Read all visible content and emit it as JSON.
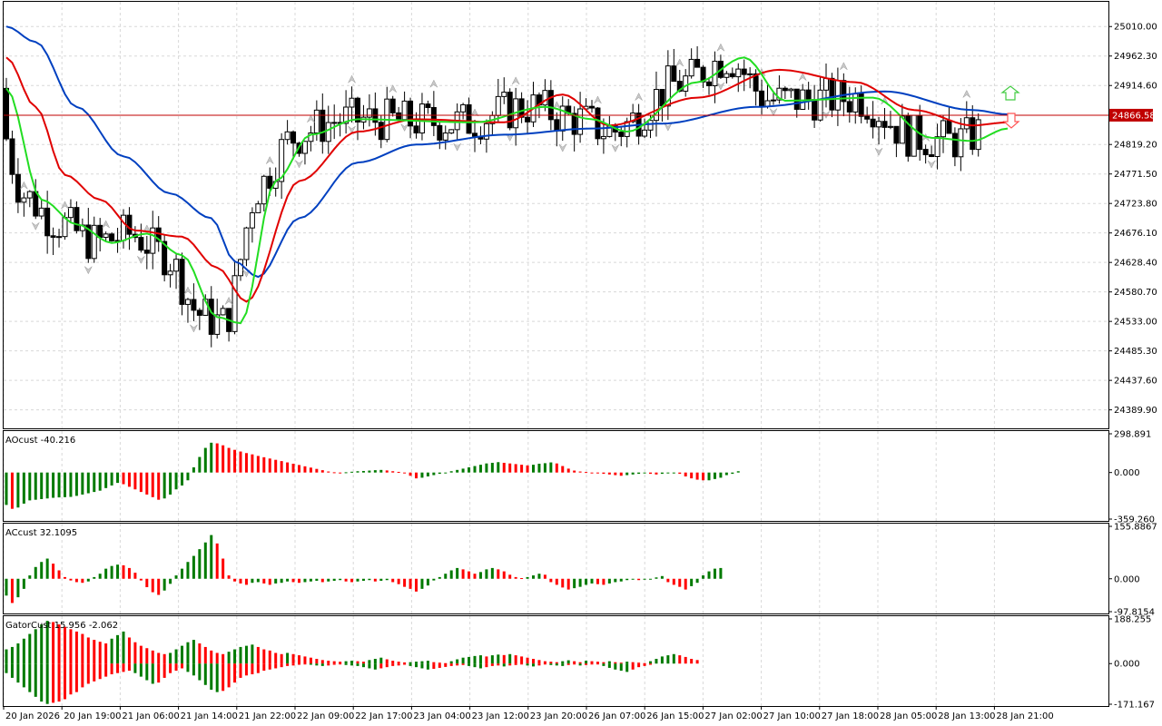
{
  "chart_data": [
    {
      "type": "candlestick",
      "panel": "main",
      "price_ticks": [
        "25010.00",
        "24962.30",
        "24914.60",
        "24866.58",
        "24819.20",
        "24771.50",
        "24723.80",
        "24676.10",
        "24628.40",
        "24580.70",
        "24533.00",
        "24485.30",
        "24437.60",
        "24389.90"
      ],
      "price_range": [
        24360,
        25050
      ],
      "current_price_label": "24866.58",
      "current_price": 24866.58,
      "candle_count": 171,
      "series": [
        {
          "name": "",
          "color": "#0040c0",
          "anchors": [
            [
              0,
              25010
            ],
            [
              5,
              24985
            ],
            [
              12,
              24880
            ],
            [
              20,
              24800
            ],
            [
              28,
              24740
            ],
            [
              35,
              24700
            ],
            [
              39,
              24630
            ],
            [
              43,
              24605
            ],
            [
              50,
              24700
            ],
            [
              60,
              24790
            ],
            [
              70,
              24819
            ],
            [
              85,
              24835
            ],
            [
              100,
              24845
            ],
            [
              112,
              24853
            ],
            [
              128,
              24880
            ],
            [
              150,
              24905
            ],
            [
              165,
              24875
            ],
            [
              171,
              24868
            ]
          ]
        },
        {
          "name": "",
          "color": "#e00000",
          "anchors": [
            [
              0,
              24960
            ],
            [
              5,
              24880
            ],
            [
              10,
              24770
            ],
            [
              16,
              24730
            ],
            [
              22,
              24680
            ],
            [
              30,
              24670
            ],
            [
              36,
              24620
            ],
            [
              41,
              24565
            ],
            [
              50,
              24760
            ],
            [
              60,
              24840
            ],
            [
              70,
              24860
            ],
            [
              85,
              24855
            ],
            [
              95,
              24900
            ],
            [
              103,
              24850
            ],
            [
              118,
              24895
            ],
            [
              132,
              24940
            ],
            [
              145,
              24920
            ],
            [
              155,
              24875
            ],
            [
              165,
              24850
            ],
            [
              171,
              24855
            ]
          ]
        },
        {
          "name": "",
          "color": "#22dd22",
          "anchors": [
            [
              0,
              24910
            ],
            [
              6,
              24730
            ],
            [
              12,
              24690
            ],
            [
              18,
              24660
            ],
            [
              24,
              24675
            ],
            [
              30,
              24640
            ],
            [
              36,
              24540
            ],
            [
              40,
              24530
            ],
            [
              46,
              24760
            ],
            [
              52,
              24835
            ],
            [
              60,
              24860
            ],
            [
              80,
              24855
            ],
            [
              92,
              24880
            ],
            [
              100,
              24860
            ],
            [
              106,
              24840
            ],
            [
              118,
              24920
            ],
            [
              126,
              24960
            ],
            [
              133,
              24890
            ],
            [
              148,
              24895
            ],
            [
              158,
              24830
            ],
            [
              165,
              24825
            ],
            [
              171,
              24845
            ]
          ]
        }
      ],
      "x_tick_labels": [
        "20 Jan 2026",
        "20 Jan 19:00",
        "21 Jan 06:00",
        "21 Jan 14:00",
        "21 Jan 22:00",
        "22 Jan 09:00",
        "22 Jan 17:00",
        "23 Jan 04:00",
        "23 Jan 12:00",
        "23 Jan 20:00",
        "26 Jan 07:00",
        "26 Jan 15:00",
        "27 Jan 02:00",
        "27 Jan 10:00",
        "27 Jan 18:00",
        "28 Jan 05:00",
        "28 Jan 13:00",
        "28 Jan 21:00"
      ]
    },
    {
      "type": "bar",
      "panel": "AO",
      "label": "AOcust -40.216",
      "ticks": [
        "298.891",
        "0.000",
        "-359.260"
      ],
      "range": [
        -359.26,
        298.891
      ],
      "up_color": "#007a00",
      "down_color": "#ff0000",
      "values": [
        -250,
        -280,
        -270,
        -240,
        -215,
        -210,
        -205,
        -200,
        -195,
        -192,
        -190,
        -188,
        -180,
        -170,
        -160,
        -150,
        -140,
        -120,
        -100,
        -80,
        -90,
        -110,
        -130,
        -150,
        -170,
        -190,
        -210,
        -200,
        -170,
        -130,
        -100,
        -60,
        40,
        120,
        190,
        230,
        225,
        210,
        190,
        175,
        162,
        150,
        140,
        128,
        118,
        108,
        98,
        88,
        78,
        68,
        58,
        48,
        38,
        28,
        18,
        8,
        2,
        -2,
        2,
        6,
        10,
        12,
        15,
        18,
        20,
        16,
        10,
        5,
        -5,
        -25,
        -45,
        -40,
        -30,
        -20,
        -10,
        0,
        10,
        20,
        30,
        40,
        50,
        60,
        70,
        75,
        80,
        75,
        70,
        65,
        60,
        55,
        60,
        68,
        72,
        78,
        70,
        50,
        30,
        15,
        8,
        4,
        0,
        -5,
        -10,
        -15,
        -20,
        -25,
        -20,
        -15,
        -10,
        -5,
        -10,
        -15,
        -10,
        -5,
        0,
        -10,
        -30,
        -45,
        -55,
        -60,
        -60,
        -50,
        -40,
        -20,
        -10,
        10
      ]
    },
    {
      "type": "bar",
      "panel": "AC",
      "label": "ACcust 32.1095",
      "ticks": [
        "155.8867",
        "0.000",
        "-97.8154"
      ],
      "range": [
        -97.8154,
        155.8867
      ],
      "up_color": "#007a00",
      "down_color": "#ff0000",
      "values": [
        -50,
        -72,
        -55,
        -30,
        10,
        35,
        50,
        60,
        45,
        25,
        5,
        -5,
        -10,
        -12,
        -8,
        5,
        15,
        30,
        38,
        42,
        40,
        32,
        18,
        -5,
        -25,
        -40,
        -48,
        -35,
        -15,
        10,
        30,
        50,
        68,
        88,
        108,
        130,
        105,
        60,
        10,
        -8,
        -14,
        -18,
        -12,
        -10,
        -14,
        -18,
        -14,
        -12,
        -8,
        -10,
        -12,
        -10,
        -8,
        -6,
        -10,
        -8,
        -6,
        -4,
        -8,
        -10,
        -8,
        -6,
        -4,
        -8,
        -6,
        -4,
        -10,
        -16,
        -24,
        -30,
        -38,
        -30,
        -20,
        -5,
        5,
        15,
        25,
        32,
        28,
        22,
        15,
        20,
        28,
        32,
        28,
        22,
        12,
        5,
        2,
        5,
        10,
        15,
        12,
        -10,
        -18,
        -26,
        -32,
        -28,
        -24,
        -18,
        -14,
        -16,
        -18,
        -14,
        -10,
        -8,
        -4,
        0,
        -4,
        -2,
        0,
        4,
        8,
        -10,
        -18,
        -24,
        -32,
        -22,
        -12,
        10,
        22,
        30,
        32
      ]
    },
    {
      "type": "bar",
      "panel": "Gator",
      "label": "GatorCust 15.956 -2.062",
      "ticks": [
        "188.255",
        "0.000",
        "-171.167"
      ],
      "range": [
        -171.167,
        188.255
      ],
      "up_color": "#007a00",
      "down_color": "#ff0000",
      "upper_values": [
        60,
        70,
        85,
        105,
        125,
        145,
        165,
        180,
        175,
        165,
        155,
        145,
        135,
        125,
        110,
        100,
        92,
        85,
        105,
        120,
        135,
        110,
        90,
        75,
        65,
        55,
        45,
        40,
        45,
        60,
        75,
        90,
        100,
        85,
        70,
        55,
        45,
        40,
        50,
        60,
        70,
        75,
        80,
        70,
        60,
        55,
        45,
        40,
        45,
        40,
        35,
        30,
        25,
        20,
        15,
        12,
        10,
        8,
        10,
        12,
        10,
        8,
        15,
        20,
        25,
        18,
        12,
        8,
        5,
        6,
        8,
        10,
        12,
        6,
        4,
        2,
        10,
        18,
        25,
        28,
        32,
        35,
        30,
        35,
        38,
        36,
        40,
        35,
        30,
        25,
        20,
        15,
        10,
        8,
        6,
        10,
        14,
        10,
        6,
        12,
        10,
        8,
        6,
        10,
        6,
        4,
        8,
        6,
        4,
        2,
        10,
        20,
        30,
        35,
        40,
        35,
        28,
        20,
        15
      ],
      "lower_values": [
        -40,
        -60,
        -80,
        -100,
        -120,
        -140,
        -160,
        -170,
        -165,
        -160,
        -150,
        -130,
        -120,
        -100,
        -85,
        -75,
        -65,
        -55,
        -45,
        -40,
        -35,
        -30,
        -40,
        -55,
        -70,
        -85,
        -80,
        -60,
        -40,
        -30,
        -20,
        -35,
        -50,
        -70,
        -90,
        -110,
        -120,
        -115,
        -100,
        -80,
        -60,
        -50,
        -45,
        -40,
        -30,
        -25,
        -20,
        -15,
        -10,
        -8,
        -5,
        -3,
        -5,
        -8,
        -10,
        -8,
        -5,
        -3,
        -6,
        -8,
        -10,
        -15,
        -20,
        -25,
        -20,
        -15,
        -10,
        -8,
        -5,
        -10,
        -15,
        -20,
        -25,
        -22,
        -18,
        -14,
        -10,
        -8,
        -6,
        -10,
        -15,
        -20,
        -15,
        -10,
        -8,
        -12,
        -8,
        -6,
        -4,
        -8,
        -12,
        -8,
        -4,
        -6,
        -8,
        -10,
        -6,
        -4,
        -8,
        -6,
        -4,
        -2,
        -10,
        -18,
        -25,
        -30,
        -35,
        -25,
        -15,
        -10,
        -5
      ]
    }
  ]
}
